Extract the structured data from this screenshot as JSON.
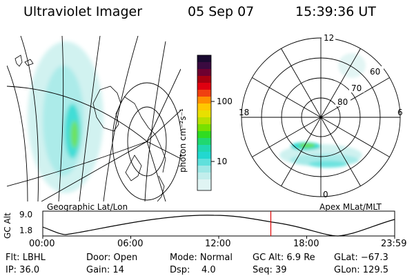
{
  "header": {
    "title": "Ultraviolet Imager",
    "date": "05 Sep 07",
    "time": "15:39:36 UT"
  },
  "colorbar": {
    "unit": "photon cm⁻²s⁻¹",
    "ticks": [
      "100",
      "10"
    ]
  },
  "geo_panel": {
    "caption": "Geographic Lat/Lon"
  },
  "polar_panel": {
    "caption": "Apex MLat/MLT",
    "mlt_labels": {
      "top": "12",
      "left": "18",
      "right": "6",
      "bottom": "0"
    },
    "mlat_labels": [
      "60",
      "70",
      "80"
    ]
  },
  "altitude_plot": {
    "axis_label": "GC Alt",
    "y_ticks": [
      "9.0",
      "1.8"
    ],
    "x_ticks": [
      "00:00",
      "06:00",
      "12:00",
      "18:00",
      "23:59"
    ],
    "marker_time": "15:39"
  },
  "info": {
    "flt": "Flt: LBHL",
    "ip": "IP: 36.0",
    "door": "Door: Open",
    "gain": "Gain: 14",
    "mode": "Mode: Normal",
    "dsp": "Dsp:    4.0",
    "gc_alt": "GC Alt: 6.9 Re",
    "seq": "Seq: 39",
    "glat": "GLat: −67.3",
    "glon": "GLon: 129.5"
  },
  "colors": {
    "marker": "#e00000",
    "aurora_faint": "#9ee8e6",
    "aurora_mid": "#22d8d0",
    "aurora_bright": "#55dd44"
  }
}
